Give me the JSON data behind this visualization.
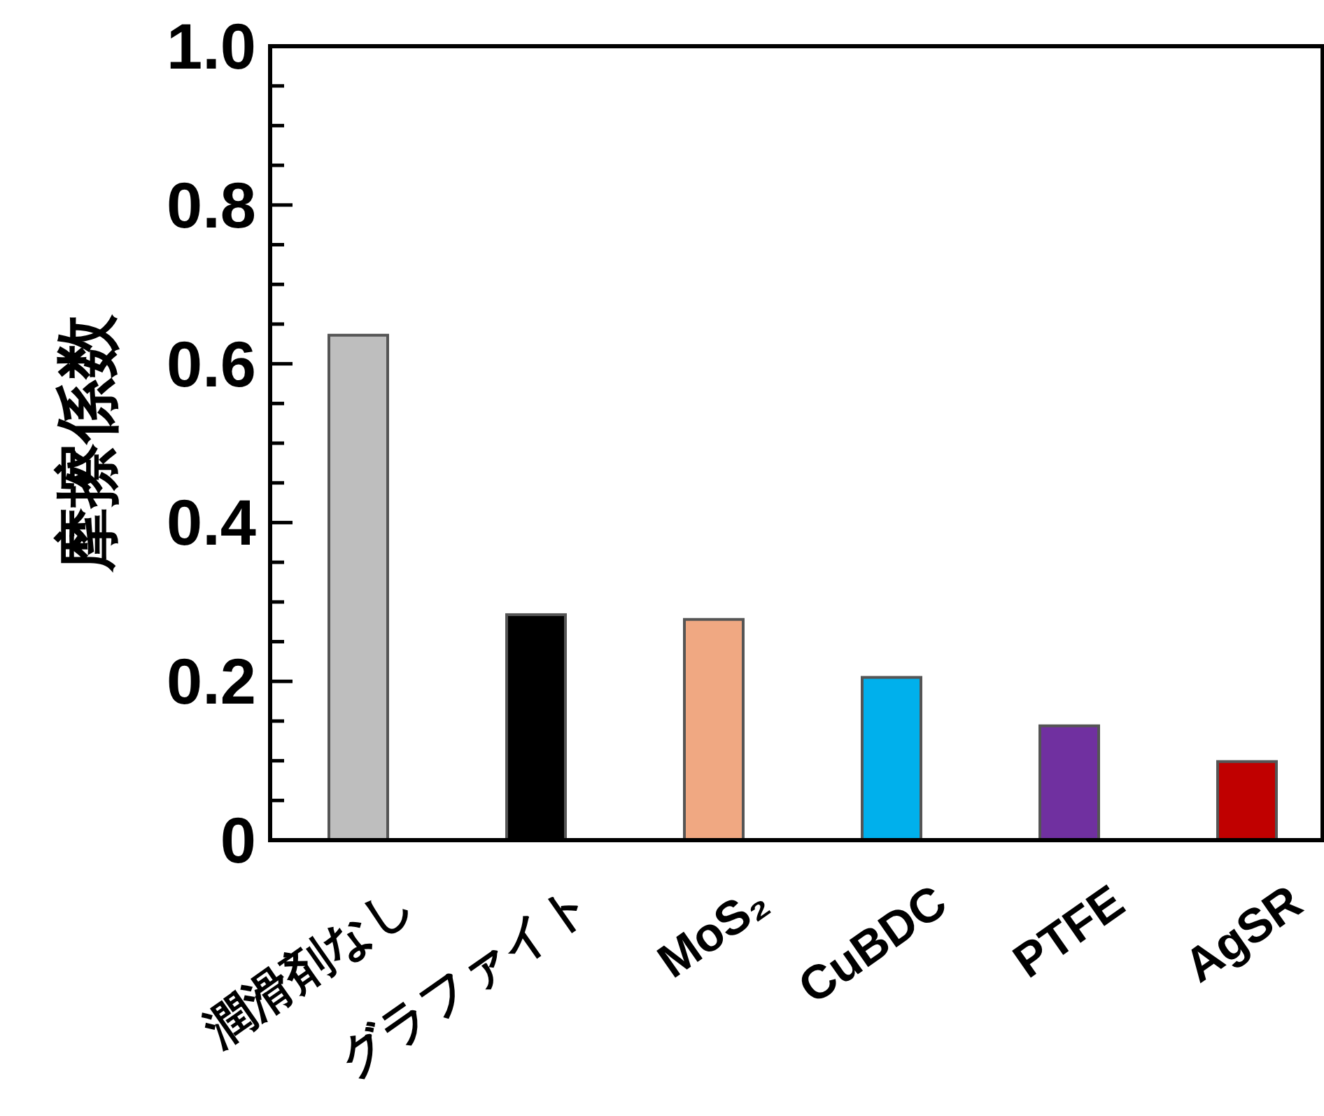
{
  "chart_data": {
    "type": "bar",
    "ylabel": "摩擦係数",
    "categories": [
      "潤滑剤なし",
      "グラファイト",
      "MoS₂",
      "CuBDC",
      "PTFE",
      "AgSR"
    ],
    "values": [
      0.636,
      0.284,
      0.278,
      0.205,
      0.144,
      0.099
    ],
    "colors": [
      "#bebebe",
      "#000000",
      "#f0a882",
      "#00b0ec",
      "#7030a0",
      "#c00000"
    ],
    "ylim": [
      0,
      1.0
    ],
    "yticks": [
      0,
      {
        "value": 0.05,
        "label": null
      },
      {
        "value": 0.1,
        "label": null
      },
      {
        "value": 0.15,
        "label": null
      },
      0.2,
      {
        "value": 0.25,
        "label": null
      },
      {
        "value": 0.3,
        "label": null
      },
      {
        "value": 0.35,
        "label": null
      },
      0.4,
      {
        "value": 0.45,
        "label": null
      },
      {
        "value": 0.5,
        "label": null
      },
      {
        "value": 0.55,
        "label": null
      },
      0.6,
      {
        "value": 0.65,
        "label": null
      },
      {
        "value": 0.7,
        "label": null
      },
      {
        "value": 0.75,
        "label": null
      },
      0.8,
      {
        "value": 0.85,
        "label": null
      },
      {
        "value": 0.9,
        "label": null
      },
      {
        "value": 0.95,
        "label": null
      },
      {
        "value": 1.0,
        "label": "1.0"
      }
    ],
    "grid": false
  }
}
